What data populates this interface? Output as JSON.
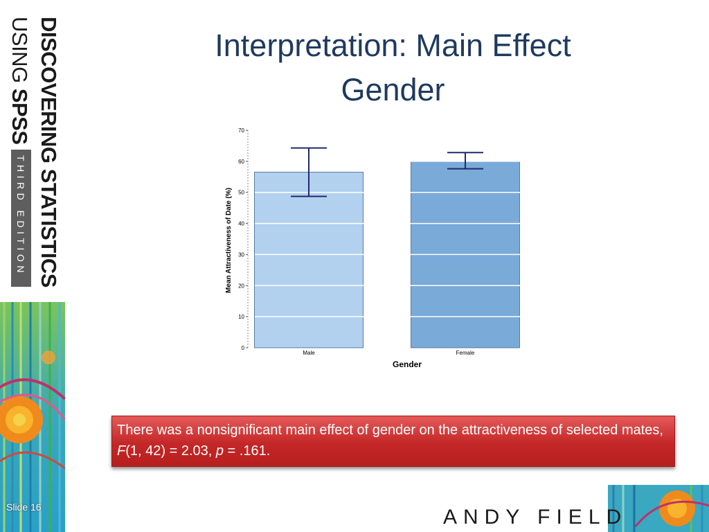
{
  "branding": {
    "line1": "DISCOVERING STATISTICS",
    "line2_prefix": "USING ",
    "line2_bold": "SPSS",
    "edition": "THIRD EDITION"
  },
  "slide": {
    "title_line1": "Interpretation: Main Effect",
    "title_line2": "Gender",
    "number": "Slide 16",
    "author": "ANDY FIELD"
  },
  "callout": {
    "text_part1": "There was a nonsignificant main effect of gender on the attractiveness of selected mates, ",
    "stat_f": "F",
    "text_part2": "(1, 42) = 2.03, ",
    "stat_p": "p",
    "text_part3": " = .161."
  },
  "colors": {
    "bar_male": "#b2d1ef",
    "bar_female": "#7aaad8",
    "bar_border": "#5878a8",
    "error_bar": "#1f2a6b"
  },
  "chart_data": {
    "type": "bar",
    "categories": [
      "Male",
      "Female"
    ],
    "values": [
      56.5,
      60.0
    ],
    "error_low": [
      48.7,
      57.6
    ],
    "error_high": [
      64.3,
      62.8
    ],
    "xlabel": "Gender",
    "ylabel": "Mean Attractiveness of Date (%)",
    "ylim": [
      0,
      70
    ],
    "yticks": [
      0,
      10,
      20,
      30,
      40,
      50,
      60,
      70
    ],
    "grid": true
  }
}
